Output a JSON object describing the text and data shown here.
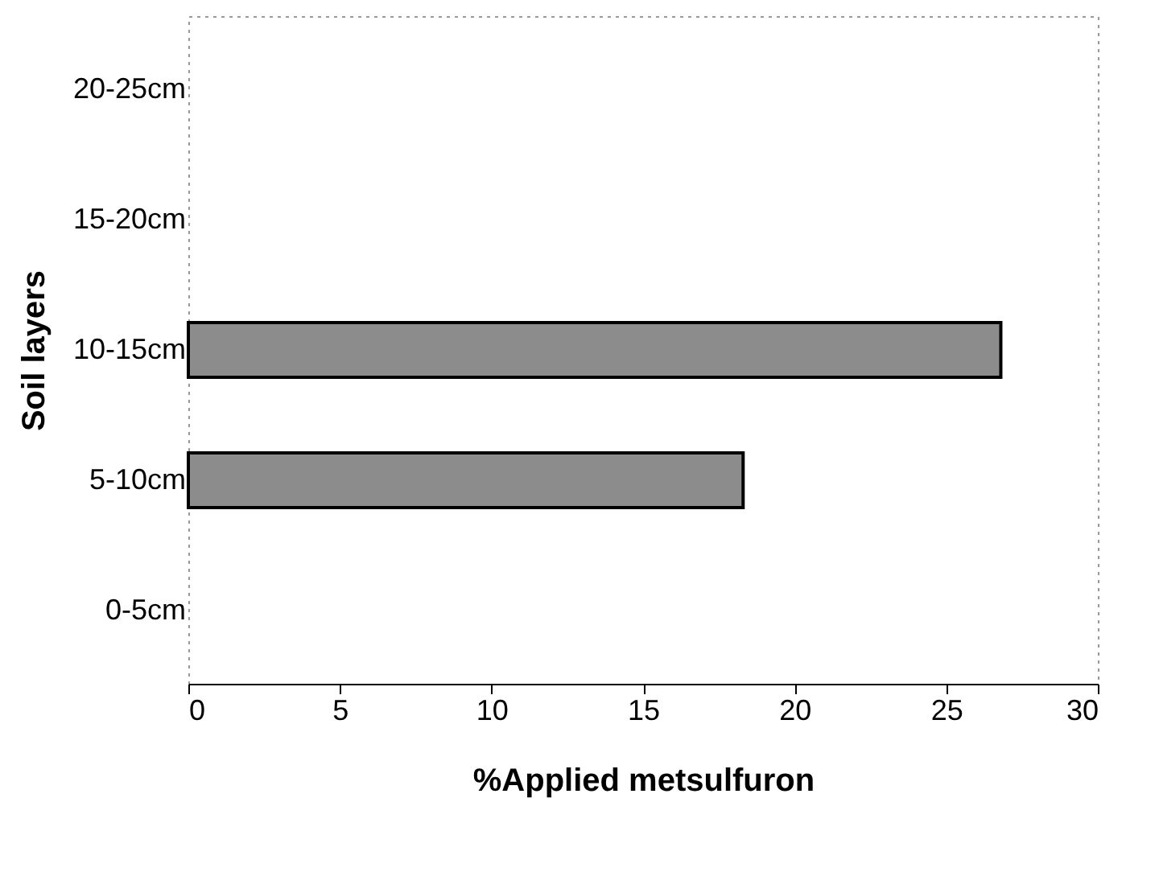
{
  "chart_data": {
    "type": "bar",
    "orientation": "horizontal",
    "xlabel": "%Applied metsulfuron",
    "ylabel": "Soil layers",
    "categories": [
      "20-25cm",
      "15-20cm",
      "10-15cm",
      "5-10cm",
      "0-5cm"
    ],
    "values": [
      null,
      null,
      26.8,
      18.3,
      null
    ],
    "color": "#8c8c8c",
    "xlim": [
      0,
      30
    ],
    "xticks": [
      0,
      5,
      10,
      15,
      20,
      25,
      30
    ],
    "grid": false
  }
}
